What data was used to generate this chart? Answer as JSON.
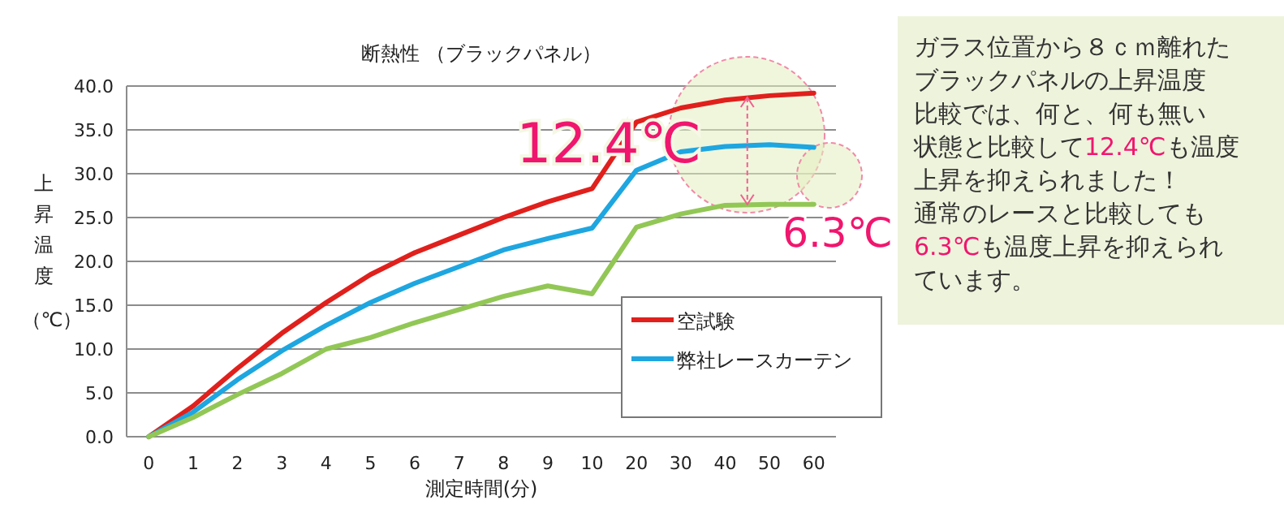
{
  "chart_data": {
    "type": "line",
    "title": "断熱性 （ブラックパネル）",
    "xlabel": "測定時間(分)",
    "ylabel": "上昇温度（℃）",
    "categories": [
      "0",
      "1",
      "2",
      "3",
      "4",
      "5",
      "6",
      "7",
      "8",
      "9",
      "10",
      "20",
      "30",
      "40",
      "50",
      "60"
    ],
    "series": [
      {
        "name": "空試験",
        "color": "#e0201c",
        "values": [
          0,
          3.5,
          7.8,
          11.8,
          15.3,
          18.5,
          21.0,
          23.0,
          25.0,
          26.8,
          28.3,
          35.9,
          37.5,
          38.4,
          38.9,
          39.2
        ]
      },
      {
        "name": "弊社レースカーテン",
        "color": "#1ea6e0",
        "values": [
          0,
          2.8,
          6.5,
          9.8,
          12.7,
          15.3,
          17.5,
          19.4,
          21.3,
          22.6,
          23.8,
          30.4,
          32.5,
          33.1,
          33.3,
          33.0
        ]
      },
      {
        "color": "#92c756",
        "values": [
          0,
          2.2,
          4.8,
          7.2,
          10.0,
          11.3,
          13.0,
          14.5,
          16.0,
          17.2,
          16.3,
          23.9,
          25.4,
          26.4,
          26.5,
          26.5
        ]
      }
    ],
    "ylim": [
      0,
      40
    ],
    "yticks": [
      {
        "value": 0,
        "label": "0.0"
      },
      {
        "value": 5,
        "label": "5.0"
      },
      {
        "value": 10,
        "label": "10.0"
      },
      {
        "value": 15,
        "label": "15.0"
      },
      {
        "value": 20,
        "label": "20.0"
      },
      {
        "value": 25,
        "label": "25.0"
      },
      {
        "value": 30,
        "label": "30.0"
      },
      {
        "value": 35,
        "label": "35.0"
      },
      {
        "value": 40,
        "label": "40.0"
      }
    ],
    "grid": "y",
    "legend": "bottom right",
    "marker": "none",
    "line_style": "solid",
    "annotations": [
      "12.4℃",
      "6.3℃",
      "ガラス位置から８ｃｍ離れた",
      "ブラックパネルの上昇温度",
      "比較では、何と、何も無い",
      "状態と比較して12.4℃も温度",
      "上昇を抑えられました！",
      "通常のレースと比較しても",
      "6.3℃も温度上昇を抑えられ",
      "ています。"
    ]
  }
}
